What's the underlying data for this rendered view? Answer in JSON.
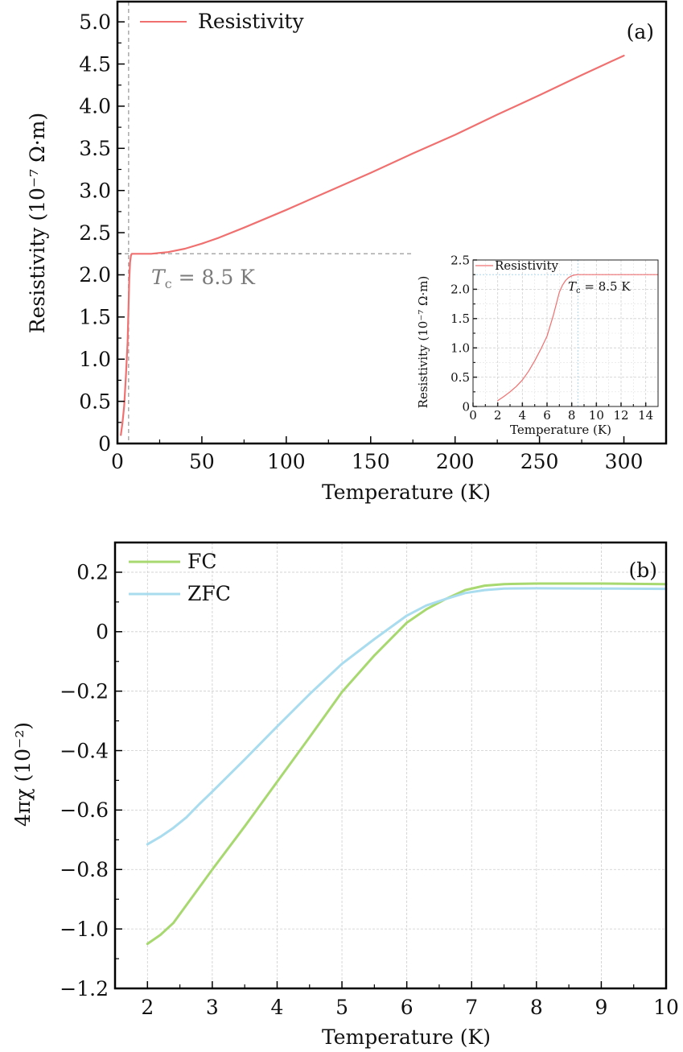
{
  "chart_data": [
    {
      "id": "a",
      "type": "line",
      "panel_label": "(a)",
      "title": "",
      "xlabel": "Temperature (K)",
      "ylabel": "Resistivity (10⁻⁷ Ω·m)",
      "xlim": [
        0,
        325
      ],
      "ylim": [
        0,
        5.24
      ],
      "xticks": [
        0,
        50,
        100,
        150,
        200,
        250,
        300
      ],
      "xtick_labels": [
        "0",
        "50",
        "100",
        "150",
        "200",
        "250",
        "300"
      ],
      "yticks": [
        0,
        0.5,
        1.0,
        1.5,
        2.0,
        2.5,
        3.0,
        3.5,
        4.0,
        4.5,
        5.0
      ],
      "ytick_labels": [
        "0",
        "0.5",
        "1.0",
        "1.5",
        "2.0",
        "2.5",
        "3.0",
        "3.5",
        "4.0",
        "4.5",
        "5.0"
      ],
      "grid": false,
      "legend_position": "top-left",
      "series": [
        {
          "name": "Resistivity",
          "color": "#f07070",
          "x": [
            2,
            3,
            4,
            5,
            6,
            7,
            7.5,
            8,
            8.5,
            10,
            15,
            20,
            25,
            30,
            40,
            50,
            60,
            75,
            100,
            125,
            150,
            175,
            200,
            225,
            250,
            275,
            300
          ],
          "y": [
            0.1,
            0.25,
            0.45,
            0.8,
            1.2,
            1.95,
            2.15,
            2.23,
            2.25,
            2.25,
            2.25,
            2.25,
            2.26,
            2.27,
            2.31,
            2.37,
            2.44,
            2.56,
            2.77,
            2.99,
            3.21,
            3.44,
            3.66,
            3.9,
            4.13,
            4.37,
            4.6
          ]
        }
      ],
      "reference_lines": [
        {
          "orientation": "vertical",
          "value": 8.5,
          "style": "dashed",
          "color": "#aaaaaa"
        },
        {
          "orientation": "horizontal",
          "value": 2.25,
          "style": "dashed",
          "color": "#aaaaaa"
        }
      ],
      "annotations": [
        {
          "text_main": "T",
          "text_sub": "c",
          "text_rest": " = 8.5 K",
          "x": 18,
          "y": 1.98
        }
      ],
      "inset": {
        "type": "line",
        "xlabel": "Temperature (K)",
        "ylabel": "Resistivity (10⁻⁷ Ω·m)",
        "xlim": [
          0,
          15
        ],
        "ylim": [
          0,
          2.5
        ],
        "xticks": [
          0,
          2,
          4,
          6,
          8,
          10,
          12,
          14
        ],
        "xtick_labels": [
          "0",
          "2",
          "4",
          "6",
          "8",
          "10",
          "12",
          "14"
        ],
        "yticks": [
          0,
          0.5,
          1.0,
          1.5,
          2.0,
          2.5
        ],
        "ytick_labels": [
          "0",
          "0.5",
          "1.0",
          "1.5",
          "2.0",
          "2.5"
        ],
        "grid": true,
        "legend_position": "top-left",
        "series": [
          {
            "name": "Resistivity",
            "color": "#f07070",
            "x": [
              2,
              2.5,
              3,
              3.5,
              4,
              4.5,
              5,
              5.5,
              6,
              6.5,
              7,
              7.25,
              7.5,
              7.75,
              8,
              8.25,
              8.5,
              10,
              12,
              15
            ],
            "y": [
              0.1,
              0.17,
              0.25,
              0.34,
              0.45,
              0.6,
              0.78,
              0.98,
              1.2,
              1.55,
              1.95,
              2.07,
              2.15,
              2.2,
              2.23,
              2.245,
              2.25,
              2.25,
              2.25,
              2.25
            ]
          }
        ],
        "reference_lines": [
          {
            "orientation": "vertical",
            "value": 8.5,
            "style": "dotted",
            "color": "#a8d8ee"
          },
          {
            "orientation": "horizontal",
            "value": 2.25,
            "style": "dotted",
            "color": "#a8d8ee"
          }
        ],
        "annotations": [
          {
            "text_main": "T",
            "text_sub": "c",
            "text_rest": " = 8.5 K",
            "x": 8.7,
            "y": 1.95
          }
        ]
      }
    },
    {
      "id": "b",
      "type": "line",
      "panel_label": "(b)",
      "title": "",
      "xlabel": "Temperature (K)",
      "ylabel": "4πχ (10⁻²)",
      "xlim": [
        1.5,
        10
      ],
      "ylim": [
        -1.2,
        0.3
      ],
      "xticks": [
        2,
        3,
        4,
        5,
        6,
        7,
        8,
        9,
        10
      ],
      "xtick_labels": [
        "2",
        "3",
        "4",
        "5",
        "6",
        "7",
        "8",
        "9",
        "10"
      ],
      "yticks": [
        0.2,
        0,
        -0.2,
        -0.4,
        -0.6,
        -0.8,
        -1.0,
        -1.2
      ],
      "ytick_labels": [
        "0.2",
        "0",
        "−0.2",
        "−0.4",
        "−0.6",
        "−0.8",
        "−1.0",
        "−1.2"
      ],
      "grid": true,
      "legend_position": "top-left",
      "series": [
        {
          "name": "FC",
          "color": "#a8d870",
          "x": [
            2,
            2.2,
            2.4,
            2.6,
            2.8,
            3,
            3.5,
            4,
            4.5,
            5,
            5.5,
            6,
            6.3,
            6.6,
            6.9,
            7.2,
            7.5,
            8,
            9,
            10
          ],
          "y": [
            -1.05,
            -1.02,
            -0.98,
            -0.92,
            -0.86,
            -0.8,
            -0.655,
            -0.505,
            -0.355,
            -0.203,
            -0.08,
            0.03,
            0.075,
            0.11,
            0.14,
            0.155,
            0.16,
            0.162,
            0.162,
            0.16
          ]
        },
        {
          "name": "ZFC",
          "color": "#a8dcee",
          "x": [
            2,
            2.2,
            2.4,
            2.6,
            2.8,
            3,
            3.5,
            4,
            4.5,
            5,
            5.5,
            6,
            6.3,
            6.6,
            6.9,
            7.2,
            7.5,
            8,
            9,
            10
          ],
          "y": [
            -0.715,
            -0.69,
            -0.66,
            -0.625,
            -0.58,
            -0.538,
            -0.43,
            -0.319,
            -0.21,
            -0.108,
            -0.025,
            0.054,
            0.088,
            0.11,
            0.13,
            0.14,
            0.145,
            0.146,
            0.145,
            0.144
          ]
        }
      ]
    }
  ]
}
